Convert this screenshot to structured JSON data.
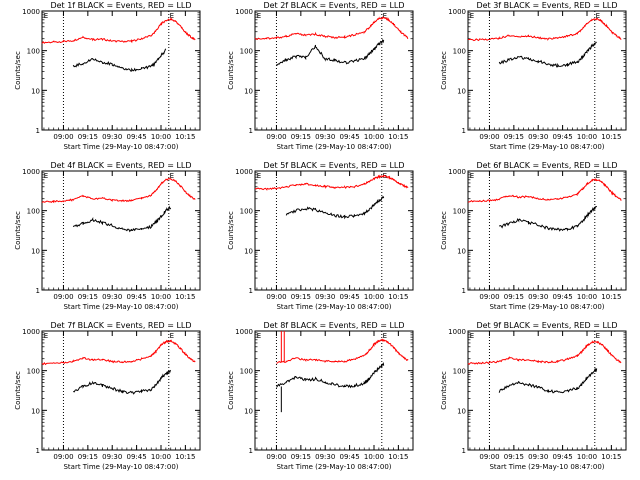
{
  "figure": {
    "time_ticks": [
      "09:00",
      "09:15",
      "09:30",
      "09:45",
      "10:00",
      "10:15"
    ],
    "xlabel": "Start Time (29-May-10 08:47:00)",
    "ylabel": "Counts/sec",
    "ytick_labels": [
      "1",
      "10",
      "100",
      "1000"
    ],
    "marker_label": "E",
    "colors": {
      "events": "#000000",
      "lld": "#ff0000"
    }
  },
  "chart_data": [
    {
      "type": "line",
      "title": "Det 1f BLACK = Events, RED = LLD",
      "xlabel": "Start Time (29-May-10 08:47:00)",
      "ylabel": "Counts/sec",
      "xlim": [
        8.78,
        10.4
      ],
      "ylim": [
        1,
        1000
      ],
      "yscale": "log",
      "x": [
        8.78,
        8.9,
        9.0,
        9.1,
        9.2,
        9.3,
        9.4,
        9.5,
        9.6,
        9.7,
        9.8,
        9.9,
        9.95,
        10.0,
        10.05,
        10.1,
        10.15,
        10.2,
        10.25,
        10.3,
        10.35
      ],
      "vlines": [
        9.0,
        10.08
      ],
      "series": [
        {
          "name": "LLD",
          "color": "#ff0000",
          "values": [
            160,
            165,
            170,
            180,
            220,
            190,
            195,
            175,
            170,
            175,
            200,
            240,
            320,
            470,
            580,
            620,
            540,
            410,
            290,
            230,
            185
          ]
        },
        {
          "name": "Events",
          "color": "#000000",
          "values": [
            null,
            null,
            null,
            40,
            48,
            60,
            52,
            45,
            36,
            32,
            35,
            40,
            52,
            75,
            105,
            null,
            null,
            null,
            null,
            null,
            null
          ]
        }
      ]
    },
    {
      "type": "line",
      "title": "Det 2f BLACK = Events, RED = LLD",
      "xlabel": "Start Time (29-May-10 08:47:00)",
      "ylabel": "Counts/sec",
      "xlim": [
        8.78,
        10.4
      ],
      "ylim": [
        1,
        1000
      ],
      "yscale": "log",
      "x": [
        8.78,
        8.9,
        9.0,
        9.1,
        9.2,
        9.3,
        9.4,
        9.5,
        9.6,
        9.7,
        9.8,
        9.9,
        9.95,
        10.0,
        10.05,
        10.1,
        10.15,
        10.2,
        10.25,
        10.3,
        10.35
      ],
      "vlines": [
        9.0,
        10.08
      ],
      "series": [
        {
          "name": "LLD",
          "color": "#ff0000",
          "values": [
            200,
            205,
            210,
            230,
            270,
            245,
            260,
            230,
            215,
            220,
            250,
            300,
            380,
            520,
            650,
            680,
            600,
            470,
            340,
            260,
            210
          ]
        },
        {
          "name": "Events",
          "color": "#000000",
          "values": [
            null,
            null,
            45,
            58,
            72,
            68,
            130,
            62,
            58,
            50,
            55,
            62,
            80,
            110,
            150,
            180,
            null,
            null,
            null,
            null,
            null
          ]
        }
      ]
    },
    {
      "type": "line",
      "title": "Det 3f BLACK = Events, RED = LLD",
      "xlabel": "Start Time (29-May-10 08:47:00)",
      "ylabel": "Counts/sec",
      "xlim": [
        8.78,
        10.4
      ],
      "ylim": [
        1,
        1000
      ],
      "yscale": "log",
      "x": [
        8.78,
        8.9,
        9.0,
        9.1,
        9.2,
        9.3,
        9.4,
        9.5,
        9.6,
        9.7,
        9.8,
        9.9,
        9.95,
        10.0,
        10.05,
        10.1,
        10.15,
        10.2,
        10.25,
        10.3,
        10.35
      ],
      "vlines": [
        9.0,
        10.08
      ],
      "series": [
        {
          "name": "LLD",
          "color": "#ff0000",
          "values": [
            185,
            190,
            195,
            205,
            240,
            225,
            235,
            210,
            200,
            205,
            235,
            270,
            350,
            480,
            600,
            640,
            560,
            420,
            300,
            240,
            195
          ]
        },
        {
          "name": "Events",
          "color": "#000000",
          "values": [
            null,
            null,
            null,
            50,
            58,
            70,
            62,
            55,
            45,
            42,
            45,
            52,
            68,
            95,
            130,
            160,
            null,
            null,
            null,
            null,
            null
          ]
        }
      ]
    },
    {
      "type": "line",
      "title": "Det 4f BLACK = Events, RED = LLD",
      "xlabel": "Start Time (29-May-10 08:47:00)",
      "ylabel": "Counts/sec",
      "xlim": [
        8.78,
        10.4
      ],
      "ylim": [
        1,
        1000
      ],
      "yscale": "log",
      "x": [
        8.78,
        8.9,
        9.0,
        9.1,
        9.2,
        9.3,
        9.4,
        9.5,
        9.6,
        9.7,
        9.8,
        9.9,
        9.95,
        10.0,
        10.05,
        10.1,
        10.15,
        10.2,
        10.25,
        10.3,
        10.35
      ],
      "vlines": [
        9.0,
        10.08
      ],
      "series": [
        {
          "name": "LLD",
          "color": "#ff0000",
          "values": [
            165,
            170,
            175,
            190,
            230,
            200,
            205,
            185,
            178,
            180,
            205,
            245,
            330,
            480,
            600,
            640,
            560,
            420,
            300,
            235,
            190
          ]
        },
        {
          "name": "Events",
          "color": "#000000",
          "values": [
            null,
            null,
            null,
            38,
            48,
            58,
            50,
            42,
            35,
            32,
            34,
            40,
            52,
            72,
            100,
            125,
            null,
            null,
            null,
            null,
            null
          ]
        }
      ]
    },
    {
      "type": "line",
      "title": "Det 5f BLACK = Events, RED = LLD",
      "xlabel": "Start Time (29-May-10 08:47:00)",
      "ylabel": "Counts/sec",
      "xlim": [
        8.78,
        10.4
      ],
      "ylim": [
        1,
        1000
      ],
      "yscale": "log",
      "x": [
        8.78,
        8.9,
        9.0,
        9.1,
        9.2,
        9.3,
        9.4,
        9.5,
        9.6,
        9.7,
        9.8,
        9.9,
        9.95,
        10.0,
        10.05,
        10.1,
        10.15,
        10.2,
        10.25,
        10.3,
        10.35
      ],
      "vlines": [
        9.0,
        10.08
      ],
      "series": [
        {
          "name": "LLD",
          "color": "#ff0000",
          "values": [
            350,
            355,
            370,
            390,
            450,
            470,
            440,
            410,
            380,
            385,
            410,
            470,
            540,
            640,
            720,
            750,
            700,
            600,
            500,
            430,
            380
          ]
        },
        {
          "name": "Events",
          "color": "#000000",
          "values": [
            null,
            null,
            null,
            80,
            100,
            115,
            105,
            90,
            75,
            70,
            75,
            85,
            105,
            140,
            180,
            220,
            null,
            null,
            null,
            null,
            null
          ]
        }
      ]
    },
    {
      "type": "line",
      "title": "Det 6f BLACK = Events, RED = LLD",
      "xlabel": "Start Time (29-May-10 08:47:00)",
      "ylabel": "Counts/sec",
      "xlim": [
        8.78,
        10.4
      ],
      "ylim": [
        1,
        1000
      ],
      "yscale": "log",
      "x": [
        8.78,
        8.9,
        9.0,
        9.1,
        9.2,
        9.3,
        9.4,
        9.5,
        9.6,
        9.7,
        9.8,
        9.9,
        9.95,
        10.0,
        10.05,
        10.1,
        10.15,
        10.2,
        10.25,
        10.3,
        10.35
      ],
      "vlines": [
        9.0,
        10.08
      ],
      "series": [
        {
          "name": "LLD",
          "color": "#ff0000",
          "values": [
            170,
            175,
            180,
            195,
            240,
            220,
            225,
            200,
            190,
            195,
            220,
            260,
            340,
            470,
            580,
            610,
            530,
            400,
            290,
            230,
            185
          ]
        },
        {
          "name": "Events",
          "color": "#000000",
          "values": [
            null,
            null,
            null,
            38,
            48,
            58,
            50,
            44,
            36,
            33,
            35,
            40,
            52,
            75,
            100,
            125,
            null,
            null,
            null,
            null,
            null
          ]
        }
      ]
    },
    {
      "type": "line",
      "title": "Det 7f BLACK = Events, RED = LLD",
      "xlabel": "Start Time (29-May-10 08:47:00)",
      "ylabel": "Counts/sec",
      "xlim": [
        8.78,
        10.4
      ],
      "ylim": [
        1,
        1000
      ],
      "yscale": "log",
      "x": [
        8.78,
        8.9,
        9.0,
        9.1,
        9.2,
        9.3,
        9.4,
        9.5,
        9.6,
        9.7,
        9.8,
        9.9,
        9.95,
        10.0,
        10.05,
        10.1,
        10.15,
        10.2,
        10.25,
        10.3,
        10.35
      ],
      "vlines": [
        9.0,
        10.08
      ],
      "series": [
        {
          "name": "LLD",
          "color": "#ff0000",
          "values": [
            150,
            155,
            160,
            170,
            210,
            185,
            190,
            170,
            165,
            170,
            195,
            235,
            310,
            440,
            540,
            560,
            480,
            360,
            260,
            200,
            165
          ]
        },
        {
          "name": "Events",
          "color": "#000000",
          "values": [
            null,
            null,
            null,
            30,
            40,
            50,
            42,
            36,
            30,
            28,
            30,
            34,
            45,
            65,
            85,
            100,
            null,
            null,
            null,
            null,
            null
          ]
        }
      ]
    },
    {
      "type": "line",
      "title": "Det 8f BLACK = Events, RED = LLD",
      "xlabel": "Start Time (29-May-10 08:47:00)",
      "ylabel": "Counts/sec",
      "xlim": [
        8.78,
        10.4
      ],
      "ylim": [
        1,
        1000
      ],
      "yscale": "log",
      "x": [
        8.78,
        8.9,
        9.0,
        9.1,
        9.2,
        9.3,
        9.4,
        9.5,
        9.6,
        9.7,
        9.8,
        9.9,
        9.95,
        10.0,
        10.05,
        10.1,
        10.15,
        10.2,
        10.25,
        10.3,
        10.35
      ],
      "vlines": [
        9.0,
        10.08
      ],
      "series": [
        {
          "name": "LLD",
          "color": "#ff0000",
          "values": [
            null,
            null,
            160,
            170,
            210,
            185,
            190,
            175,
            168,
            172,
            198,
            240,
            320,
            460,
            570,
            590,
            510,
            390,
            280,
            220,
            180
          ]
        },
        {
          "name": "Events",
          "color": "#000000",
          "values": [
            null,
            null,
            40,
            52,
            70,
            58,
            62,
            52,
            44,
            40,
            42,
            48,
            62,
            88,
            115,
            145,
            null,
            null,
            null,
            null,
            null
          ]
        }
      ],
      "spikes": [
        {
          "series": "LLD",
          "x": 9.05,
          "y": 1000
        },
        {
          "series": "LLD",
          "x": 9.08,
          "y": 1000
        },
        {
          "series": "Events",
          "x": 9.05,
          "y": 9
        }
      ]
    },
    {
      "type": "line",
      "title": "Det 9f BLACK = Events, RED = LLD",
      "xlabel": "Start Time (29-May-10 08:47:00)",
      "ylabel": "Counts/sec",
      "xlim": [
        8.78,
        10.4
      ],
      "ylim": [
        1,
        1000
      ],
      "yscale": "log",
      "x": [
        8.78,
        8.9,
        9.0,
        9.1,
        9.2,
        9.3,
        9.4,
        9.5,
        9.6,
        9.7,
        9.8,
        9.9,
        9.95,
        10.0,
        10.05,
        10.1,
        10.15,
        10.2,
        10.25,
        10.3,
        10.35
      ],
      "vlines": [
        9.0,
        10.08
      ],
      "series": [
        {
          "name": "LLD",
          "color": "#ff0000",
          "values": [
            150,
            155,
            160,
            170,
            210,
            185,
            190,
            170,
            165,
            170,
            195,
            235,
            310,
            430,
            520,
            540,
            460,
            350,
            250,
            195,
            160
          ]
        },
        {
          "name": "Events",
          "color": "#000000",
          "values": [
            null,
            null,
            null,
            30,
            42,
            50,
            44,
            38,
            31,
            29,
            31,
            36,
            46,
            66,
            88,
            108,
            null,
            null,
            null,
            null,
            null
          ]
        }
      ]
    }
  ]
}
